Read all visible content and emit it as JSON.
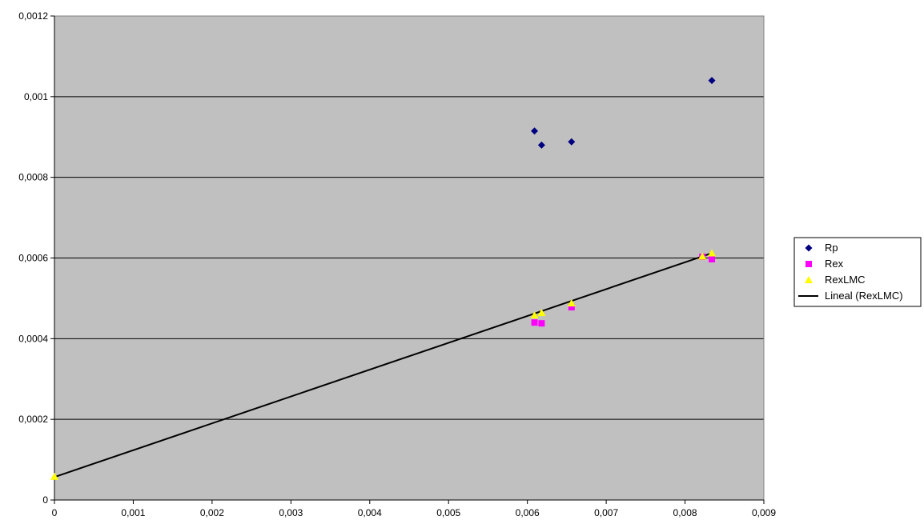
{
  "chart_data": {
    "type": "scatter",
    "title": "",
    "xlabel": "",
    "ylabel": "",
    "xlim": [
      0,
      0.009
    ],
    "ylim": [
      0,
      0.0012
    ],
    "x_ticks": [
      "0",
      "0,001",
      "0,002",
      "0,003",
      "0,004",
      "0,005",
      "0,006",
      "0,007",
      "0,008",
      "0,009"
    ],
    "x_tick_values": [
      0,
      0.001,
      0.002,
      0.003,
      0.004,
      0.005,
      0.006,
      0.007,
      0.008,
      0.009
    ],
    "y_ticks": [
      "0",
      "0,0002",
      "0,0004",
      "0,0006",
      "0,0008",
      "0,001",
      "0,0012"
    ],
    "y_tick_values": [
      0,
      0.0002,
      0.0004,
      0.0006,
      0.0008,
      0.001,
      0.0012
    ],
    "grid": "horizontal",
    "legend_position": "right",
    "plot_background": "#c0c0c0",
    "series": [
      {
        "name": "Rp",
        "marker": "diamond",
        "color": "#000080",
        "points": [
          {
            "x": 0.00609,
            "y": 0.000915
          },
          {
            "x": 0.00618,
            "y": 0.00088
          },
          {
            "x": 0.00656,
            "y": 0.000888
          },
          {
            "x": 0.00834,
            "y": 0.00104
          }
        ]
      },
      {
        "name": "Rex",
        "marker": "square",
        "color": "#ff00ff",
        "points": [
          {
            "x": 0.00609,
            "y": 0.00044
          },
          {
            "x": 0.00618,
            "y": 0.000438
          },
          {
            "x": 0.00656,
            "y": 0.000478
          },
          {
            "x": 0.00822,
            "y": 0.000603
          },
          {
            "x": 0.00834,
            "y": 0.000597
          }
        ]
      },
      {
        "name": "RexLMC",
        "marker": "triangle",
        "color": "#ffff00",
        "points": [
          {
            "x": 0,
            "y": 5.8e-05
          },
          {
            "x": 0.00609,
            "y": 0.000458
          },
          {
            "x": 0.00618,
            "y": 0.000464
          },
          {
            "x": 0.00656,
            "y": 0.000488
          },
          {
            "x": 0.00822,
            "y": 0.000604
          },
          {
            "x": 0.00834,
            "y": 0.000612
          }
        ]
      },
      {
        "name": "Lineal (RexLMC)",
        "marker": "line",
        "color": "#000000",
        "points": [
          {
            "x": 0,
            "y": 5.7e-05
          },
          {
            "x": 0.00834,
            "y": 0.000612
          }
        ]
      }
    ]
  }
}
